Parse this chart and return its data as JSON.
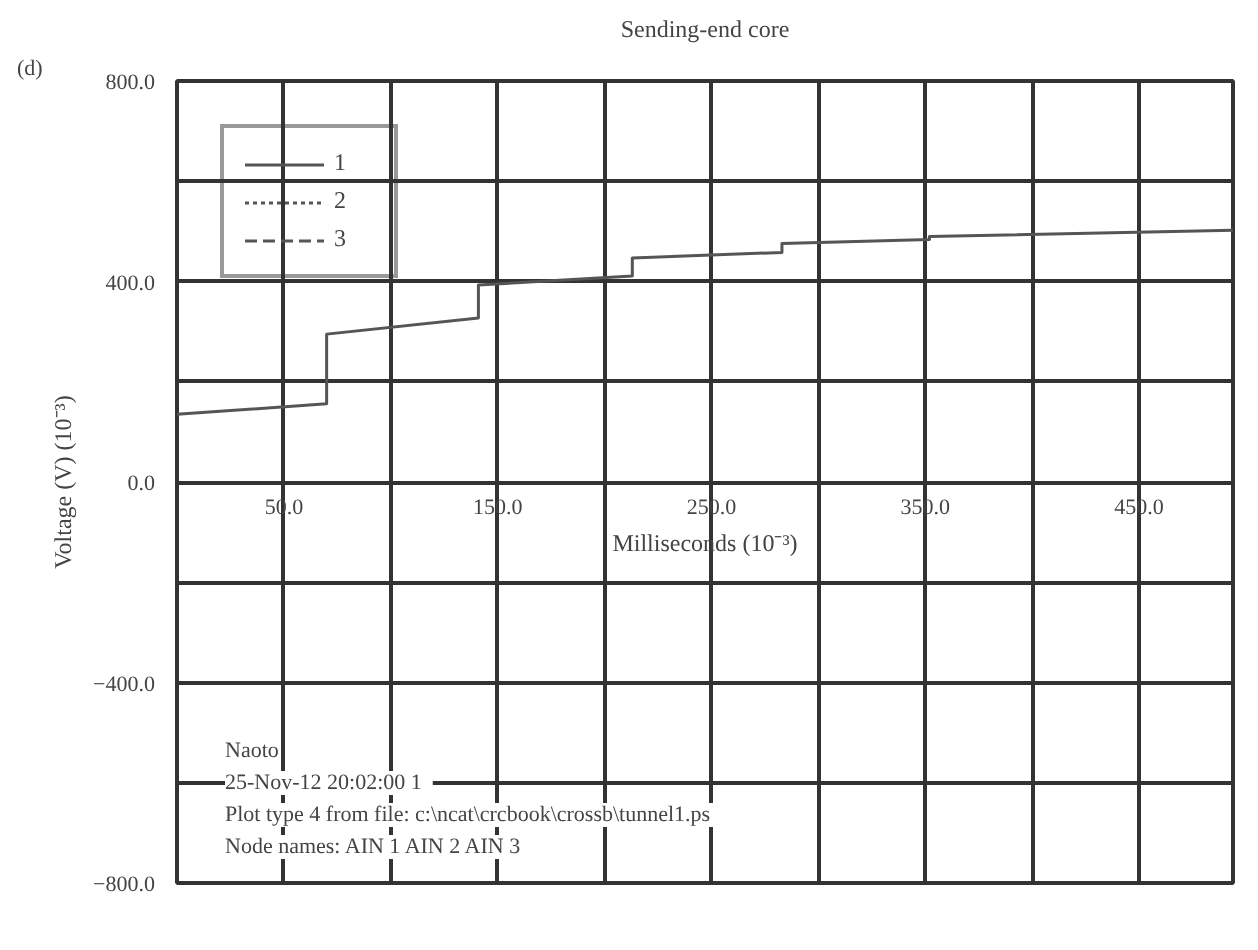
{
  "chart_data": {
    "type": "line",
    "title": "Sending-end core",
    "xlabel": "Milliseconds (10⁻³)",
    "ylabel": "Voltage (V) (10⁻³)",
    "annotations": [
      "(d)",
      "Naoto",
      "25-Nov-12  20:02:00  1",
      "Plot type  4 from file: c:\\ncat\\crcbook\\crossb\\tunnel1.ps",
      "Node names: AIN 1 AIN 2 AIN  3"
    ],
    "xlim": [
      0,
      494
    ],
    "ylim": [
      -800,
      800
    ],
    "xticks": [
      {
        "value": 0,
        "label": null
      },
      {
        "value": 50,
        "label": "50.0"
      },
      {
        "value": 100,
        "label": null
      },
      {
        "value": 150,
        "label": "150.0"
      },
      {
        "value": 200,
        "label": null
      },
      {
        "value": 250,
        "label": "250.0"
      },
      {
        "value": 300,
        "label": null
      },
      {
        "value": 350,
        "label": "350.0"
      },
      {
        "value": 400,
        "label": null
      },
      {
        "value": 450,
        "label": "450.0"
      }
    ],
    "yticks": [
      {
        "value": -800,
        "label": "−800.0"
      },
      {
        "value": -600,
        "label": null
      },
      {
        "value": -400,
        "label": "−400.0"
      },
      {
        "value": -200,
        "label": null
      },
      {
        "value": 0,
        "label": "0.0"
      },
      {
        "value": 200,
        "label": null
      },
      {
        "value": 400,
        "label": "400.0"
      },
      {
        "value": 600,
        "label": null
      },
      {
        "value": 800,
        "label": "800.0"
      }
    ],
    "grid": true,
    "legend": "top left",
    "series": [
      {
        "name": "1",
        "color": "#555555",
        "line_style": "solid",
        "x": [
          0,
          70,
          70,
          141,
          141,
          213,
          213,
          283,
          283,
          352,
          352,
          494
        ],
        "values": [
          135,
          156,
          295,
          327,
          393,
          411,
          447,
          458,
          476,
          484,
          490,
          502
        ]
      },
      {
        "name": "2",
        "color": "#555555",
        "line_style": "dotted"
      },
      {
        "name": "3",
        "color": "#555555",
        "line_style": "dashed"
      }
    ]
  }
}
